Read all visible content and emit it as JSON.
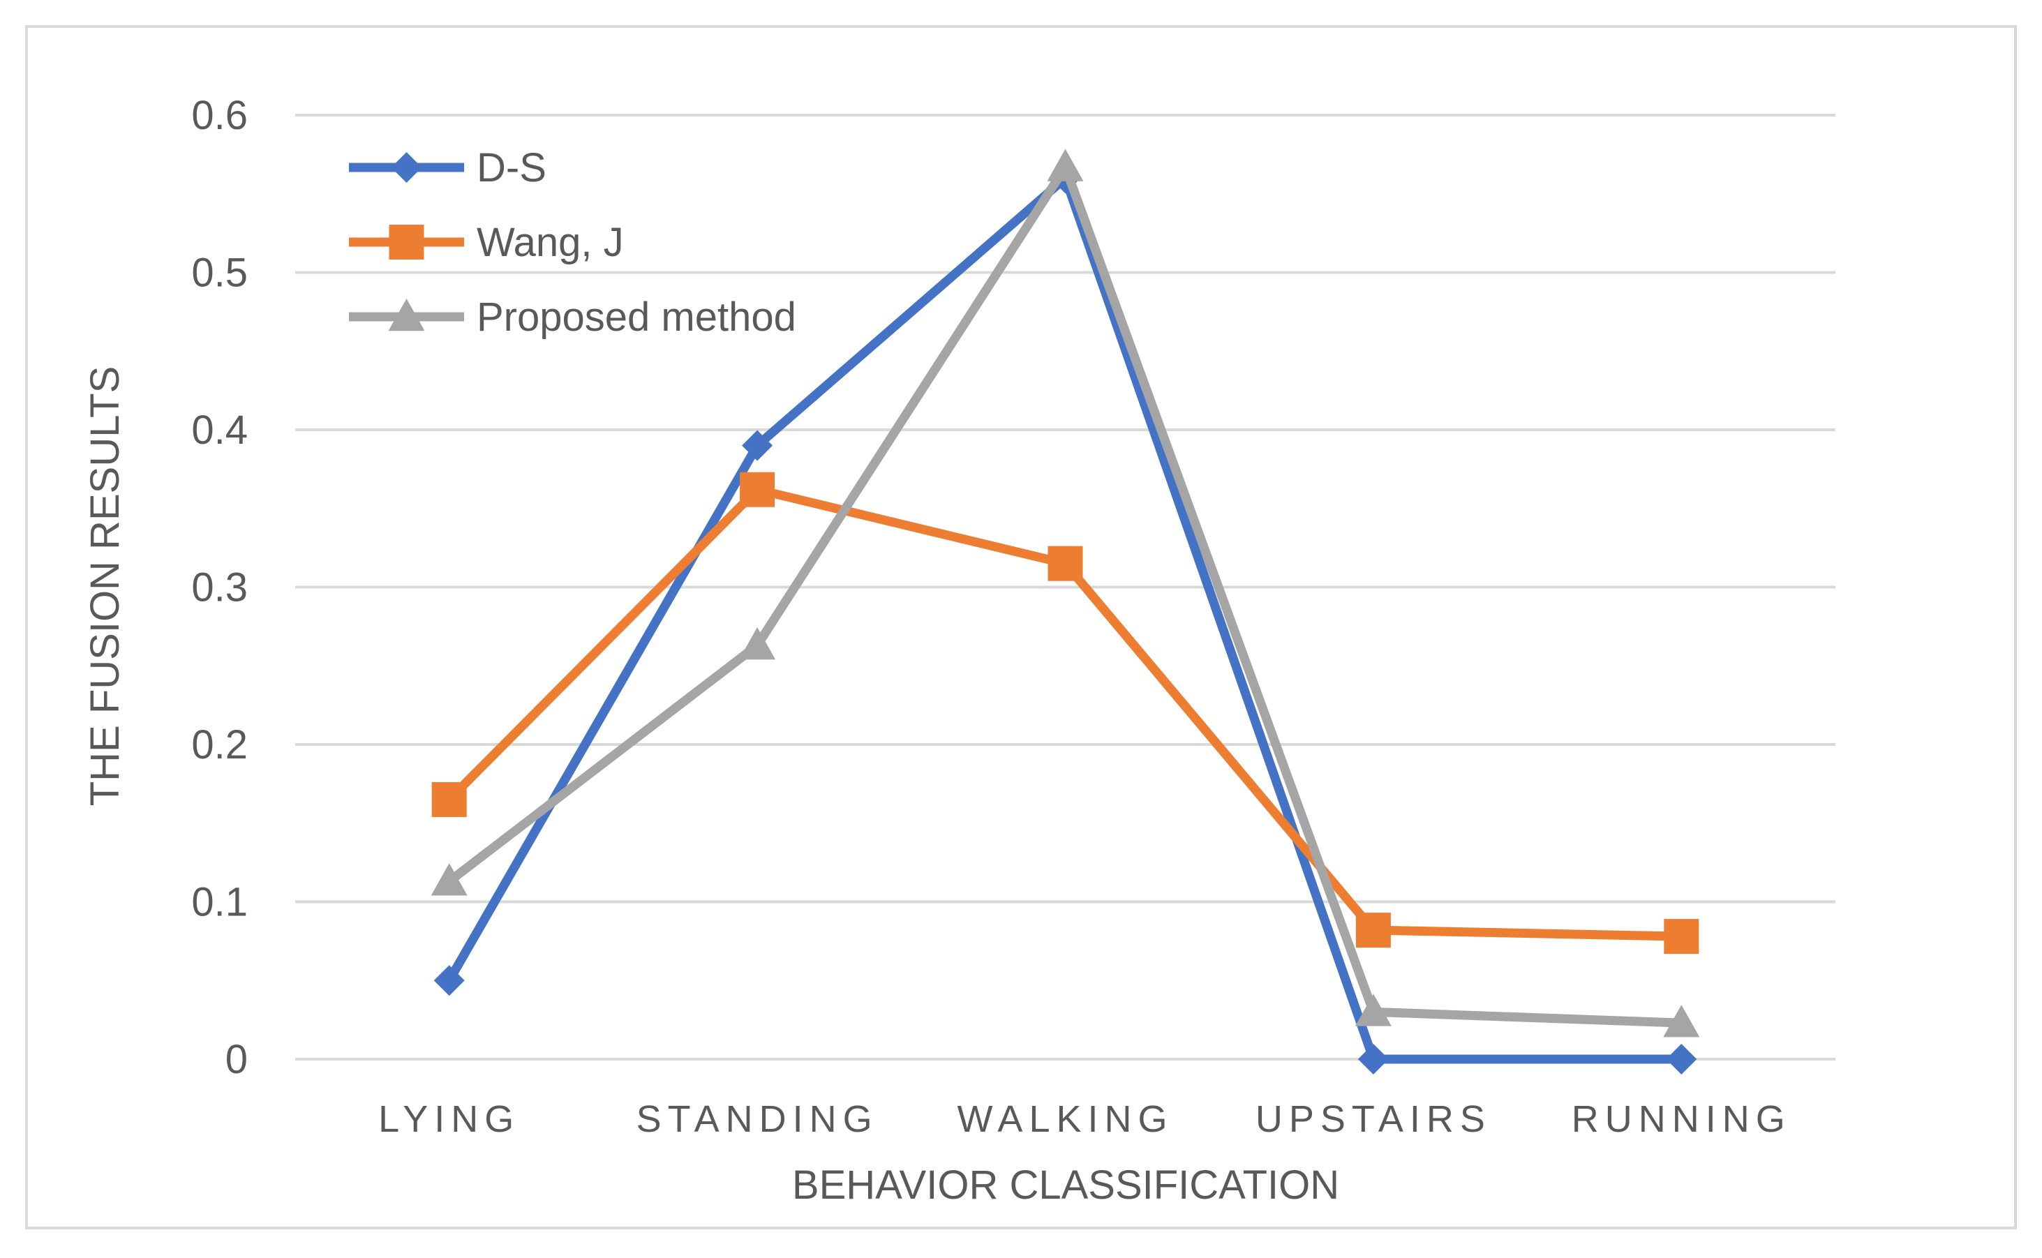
{
  "chart_data": {
    "type": "line",
    "title": "",
    "xlabel": "BEHAVIOR CLASSIFICATION",
    "ylabel": "THE FUSION RESULTS",
    "categories": [
      "LYING",
      "STANDING",
      "WALKING",
      "UPSTAIRS",
      "RUNNING"
    ],
    "ylim": [
      0,
      0.6
    ],
    "yticks": [
      "0",
      "0.1",
      "0.2",
      "0.3",
      "0.4",
      "0.5",
      "0.6"
    ],
    "grid": true,
    "legend_position": "top-left",
    "series": [
      {
        "name": "D-S",
        "color": "#4472C4",
        "marker": "diamond",
        "values": [
          0.05,
          0.39,
          0.56,
          0.0,
          0.0
        ]
      },
      {
        "name": "Wang, J",
        "color": "#ED7D31",
        "marker": "square",
        "values": [
          0.165,
          0.362,
          0.315,
          0.082,
          0.078
        ]
      },
      {
        "name": "Proposed method",
        "color": "#A5A5A5",
        "marker": "triangle",
        "values": [
          0.113,
          0.263,
          0.567,
          0.03,
          0.023
        ]
      }
    ]
  }
}
